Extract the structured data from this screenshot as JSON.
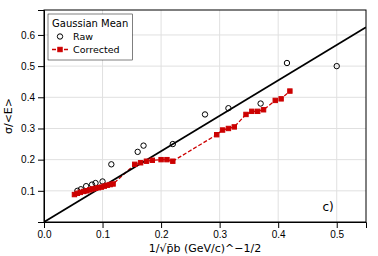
{
  "chart_data": {
    "type": "scatter",
    "xlabel": "1/√p̄b (GeV/c)^−1/2",
    "ylabel": "σ/<E>",
    "annotation": "c)",
    "legend_title": "Gaussian Mean",
    "legend": "upper left",
    "grid": true,
    "xlim": [
      0,
      0.55
    ],
    "ylim": [
      0,
      0.68
    ],
    "xticks": [
      {
        "value": 0,
        "label": "0.0"
      },
      0.1,
      0.2,
      0.3,
      0.4,
      0.5
    ],
    "yticks": [
      0.1,
      0.2,
      0.3,
      0.4,
      0.5,
      0.6
    ],
    "series": [
      {
        "name": "Raw",
        "type": "scatter",
        "marker": "open-circle",
        "color": "#000000",
        "x": [
          0.057,
          0.063,
          0.072,
          0.082,
          0.088,
          0.1,
          0.115,
          0.16,
          0.17,
          0.22,
          0.275,
          0.315,
          0.37,
          0.415,
          0.5
        ],
        "values": [
          0.1,
          0.105,
          0.115,
          0.12,
          0.125,
          0.13,
          0.185,
          0.225,
          0.245,
          0.25,
          0.345,
          0.365,
          0.38,
          0.51,
          0.5
        ]
      },
      {
        "name": "Corrected",
        "type": "line",
        "marker": "square",
        "line_style": "dashed",
        "color": "#cc0000",
        "x": [
          0.052,
          0.057,
          0.062,
          0.068,
          0.073,
          0.078,
          0.083,
          0.088,
          0.093,
          0.098,
          0.103,
          0.108,
          0.113,
          0.118,
          0.155,
          0.165,
          0.175,
          0.185,
          0.2,
          0.21,
          0.22,
          0.295,
          0.305,
          0.315,
          0.325,
          0.345,
          0.355,
          0.365,
          0.375,
          0.395,
          0.405,
          0.42
        ],
        "values": [
          0.088,
          0.092,
          0.095,
          0.098,
          0.1,
          0.103,
          0.106,
          0.108,
          0.11,
          0.112,
          0.115,
          0.118,
          0.12,
          0.122,
          0.185,
          0.19,
          0.195,
          0.198,
          0.2,
          0.2,
          0.195,
          0.28,
          0.295,
          0.3,
          0.305,
          0.345,
          0.355,
          0.355,
          0.36,
          0.39,
          0.395,
          0.42
        ]
      },
      {
        "type": "line",
        "line_style": "solid",
        "color": "#000000",
        "x": [
          0.0,
          0.55
        ],
        "values": [
          0.0,
          0.625
        ]
      }
    ]
  }
}
